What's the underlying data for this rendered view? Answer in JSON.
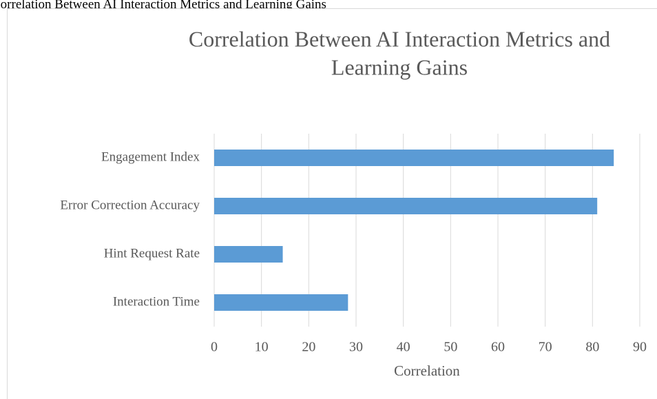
{
  "caption": "Correlation Between AI Interaction Metrics and Learning Gains",
  "chart_data": {
    "type": "bar",
    "orientation": "horizontal",
    "title": [
      "Correlation Between AI Interaction Metrics and",
      "Learning Gains"
    ],
    "categories": [
      "Engagement Index",
      "Error Correction Accuracy",
      "Hint Request Rate",
      "Interaction Time"
    ],
    "values": [
      84.5,
      81,
      14.5,
      28.3
    ],
    "color": "#5b9bd5",
    "xlabel": "Correlation",
    "xlim": [
      0,
      90
    ],
    "xticks": [
      0,
      10,
      20,
      30,
      40,
      50,
      60,
      70,
      80,
      90
    ],
    "grid": true
  }
}
